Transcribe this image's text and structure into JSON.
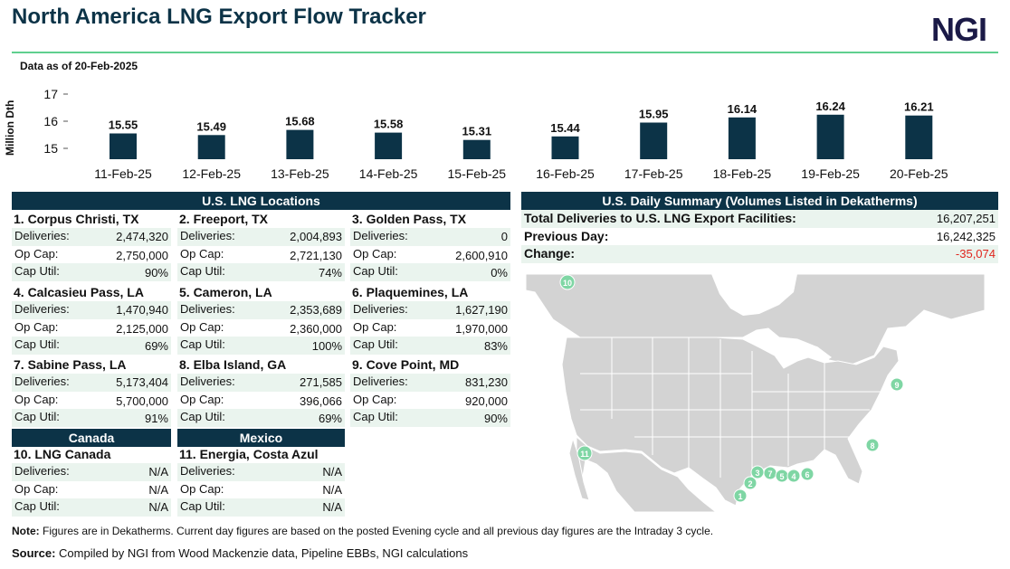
{
  "header": {
    "title": "North America LNG Export Flow Tracker",
    "logo": "NGI"
  },
  "asof": "Data as of 20-Feb-2025",
  "chart_data": {
    "type": "bar",
    "ylabel": "Million Dth",
    "ylim": [
      14.5,
      17.2
    ],
    "yticks": [
      15,
      16,
      17
    ],
    "categories": [
      "11-Feb-25",
      "12-Feb-25",
      "13-Feb-25",
      "14-Feb-25",
      "15-Feb-25",
      "16-Feb-25",
      "17-Feb-25",
      "18-Feb-25",
      "19-Feb-25",
      "20-Feb-25"
    ],
    "values": [
      15.55,
      15.49,
      15.68,
      15.58,
      15.31,
      15.44,
      15.95,
      16.14,
      16.24,
      16.21
    ],
    "value_labels": [
      "15.55",
      "15.49",
      "15.68",
      "15.58",
      "15.31",
      "15.44",
      "15.95",
      "16.14",
      "16.24",
      "16.21"
    ],
    "bar_color": "#0c3347",
    "grid": false,
    "legend": "none"
  },
  "us_locations": {
    "title": "U.S. LNG Locations",
    "labels": {
      "deliveries": "Deliveries:",
      "opcap": "Op Cap:",
      "caputil": "Cap Util:"
    },
    "items": [
      {
        "name": "1. Corpus Christi, TX",
        "deliveries": "2,474,320",
        "opcap": "2,750,000",
        "caputil": "90%"
      },
      {
        "name": "2. Freeport, TX",
        "deliveries": "2,004,893",
        "opcap": "2,721,130",
        "caputil": "74%"
      },
      {
        "name": "3. Golden Pass, TX",
        "deliveries": "0",
        "opcap": "2,600,910",
        "caputil": "0%"
      },
      {
        "name": "4. Calcasieu Pass, LA",
        "deliveries": "1,470,940",
        "opcap": "2,125,000",
        "caputil": "69%"
      },
      {
        "name": "5. Cameron, LA",
        "deliveries": "2,353,689",
        "opcap": "2,360,000",
        "caputil": "100%"
      },
      {
        "name": "6. Plaquemines, LA",
        "deliveries": "1,627,190",
        "opcap": "1,970,000",
        "caputil": "83%"
      },
      {
        "name": "7. Sabine Pass, LA",
        "deliveries": "5,173,404",
        "opcap": "5,700,000",
        "caputil": "91%"
      },
      {
        "name": "8. Elba Island, GA",
        "deliveries": "271,585",
        "opcap": "396,066",
        "caputil": "69%"
      },
      {
        "name": "9. Cove Point, MD",
        "deliveries": "831,230",
        "opcap": "920,000",
        "caputil": "90%"
      }
    ]
  },
  "canada": {
    "title": "Canada",
    "item": {
      "name": "10. LNG Canada",
      "deliveries": "N/A",
      "opcap": "N/A",
      "caputil": "N/A"
    }
  },
  "mexico": {
    "title": "Mexico",
    "item": {
      "name": "11. Energia, Costa Azul",
      "deliveries": "N/A",
      "opcap": "N/A",
      "caputil": "N/A"
    }
  },
  "summary": {
    "title": "U.S. Daily Summary (Volumes Listed in Dekatherms)",
    "rows": [
      {
        "label": "Total Deliveries to U.S. LNG Export Facilities:",
        "value": "16,207,251"
      },
      {
        "label": "Previous Day:",
        "value": "16,242,325"
      },
      {
        "label": "Change:",
        "value": "-35,074"
      }
    ]
  },
  "map": {
    "colors": {
      "land": "#d3d3d3",
      "water": "#ffffff",
      "marker": "#7fd6a4",
      "border": "#ffffff"
    },
    "markers": [
      "1",
      "2",
      "3",
      "4",
      "5",
      "6",
      "7",
      "8",
      "9",
      "10",
      "11"
    ]
  },
  "note": {
    "label": "Note:",
    "text": " Figures are in Dekatherms.  Current day figures are based on the posted Evening cycle and all previous day figures are the Intraday 3 cycle."
  },
  "source": {
    "label": "Source:",
    "text": "  Compiled by NGI from Wood Mackenzie data, Pipeline EBBs, NGI calculations"
  }
}
